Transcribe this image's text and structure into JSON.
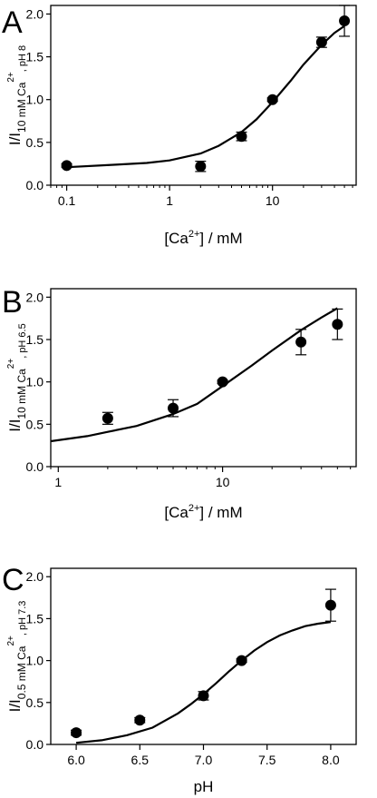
{
  "chart_data": [
    {
      "panel": "A",
      "type": "scatter",
      "xscale": "log",
      "xlim": [
        0.07,
        65
      ],
      "ylim": [
        0,
        2.1
      ],
      "xticks": [
        {
          "v": 0.1,
          "label": "0.1"
        },
        {
          "v": 1,
          "label": "1"
        },
        {
          "v": 10,
          "label": "10"
        }
      ],
      "yticks": [
        {
          "v": 0,
          "label": "0.0"
        },
        {
          "v": 0.5,
          "label": "0.5"
        },
        {
          "v": 1.0,
          "label": "1.0"
        },
        {
          "v": 1.5,
          "label": "1.5"
        },
        {
          "v": 2.0,
          "label": "2.0"
        }
      ],
      "xlabel": {
        "pre": "[Ca",
        "sup": "2+",
        "post": "] / mM"
      },
      "ylabel": {
        "main": "I/I",
        "sub": "10 mM Ca",
        "sup": "2+",
        "tail": ", pH 8"
      },
      "points": [
        {
          "x": 0.1,
          "y": 0.23,
          "err": 0.02
        },
        {
          "x": 2,
          "y": 0.22,
          "err": 0.06
        },
        {
          "x": 5,
          "y": 0.57,
          "err": 0.05
        },
        {
          "x": 10,
          "y": 1.0,
          "err": 0.02
        },
        {
          "x": 30,
          "y": 1.67,
          "err": 0.06
        },
        {
          "x": 50,
          "y": 1.92,
          "err": 0.18
        }
      ],
      "fit": {
        "x": [
          0.1,
          0.3,
          0.6,
          1,
          2,
          3,
          5,
          7,
          10,
          15,
          20,
          30,
          40,
          50
        ],
        "y": [
          0.21,
          0.24,
          0.26,
          0.29,
          0.37,
          0.46,
          0.62,
          0.77,
          0.97,
          1.22,
          1.41,
          1.64,
          1.78,
          1.86
        ]
      }
    },
    {
      "panel": "B",
      "type": "scatter",
      "xscale": "log",
      "xlim": [
        0.9,
        65
      ],
      "ylim": [
        0,
        2.1
      ],
      "xticks": [
        {
          "v": 1,
          "label": "1"
        },
        {
          "v": 10,
          "label": "10"
        }
      ],
      "yticks": [
        {
          "v": 0,
          "label": "0.0"
        },
        {
          "v": 0.5,
          "label": "0.5"
        },
        {
          "v": 1.0,
          "label": "1.0"
        },
        {
          "v": 1.5,
          "label": "1.5"
        },
        {
          "v": 2.0,
          "label": "2.0"
        }
      ],
      "xlabel": {
        "pre": "[Ca",
        "sup": "2+",
        "post": "] / mM"
      },
      "ylabel": {
        "main": "I/I",
        "sub": "10 mM Ca",
        "sup": "2+",
        "tail": ", pH 6.5"
      },
      "points": [
        {
          "x": 2,
          "y": 0.57,
          "err": 0.07
        },
        {
          "x": 5,
          "y": 0.69,
          "err": 0.1
        },
        {
          "x": 10,
          "y": 1.0,
          "err": 0.02
        },
        {
          "x": 30,
          "y": 1.47,
          "err": 0.15
        },
        {
          "x": 50,
          "y": 1.68,
          "err": 0.18
        }
      ],
      "fit": {
        "x": [
          0.9,
          1.5,
          2,
          3,
          5,
          7,
          10,
          15,
          20,
          30,
          40,
          50
        ],
        "y": [
          0.3,
          0.36,
          0.41,
          0.48,
          0.62,
          0.74,
          0.95,
          1.19,
          1.37,
          1.61,
          1.76,
          1.87
        ]
      }
    },
    {
      "panel": "C",
      "type": "scatter",
      "xscale": "linear",
      "xlim": [
        5.8,
        8.2
      ],
      "ylim": [
        0,
        2.1
      ],
      "xticks": [
        {
          "v": 6,
          "label": "6.0"
        },
        {
          "v": 6.5,
          "label": "6.5"
        },
        {
          "v": 7,
          "label": "7.0"
        },
        {
          "v": 7.5,
          "label": "7.5"
        },
        {
          "v": 8,
          "label": "8.0"
        }
      ],
      "yticks": [
        {
          "v": 0,
          "label": "0.0"
        },
        {
          "v": 0.5,
          "label": "0.5"
        },
        {
          "v": 1.0,
          "label": "1.0"
        },
        {
          "v": 1.5,
          "label": "1.5"
        },
        {
          "v": 2.0,
          "label": "2.0"
        }
      ],
      "xlabel": {
        "pre": "pH",
        "sup": "",
        "post": ""
      },
      "ylabel": {
        "main": "I/I",
        "sub": "0.5 mM Ca",
        "sup": "2+",
        "tail": ", pH 7.3"
      },
      "points": [
        {
          "x": 6.0,
          "y": 0.14,
          "err": 0.03
        },
        {
          "x": 6.5,
          "y": 0.29,
          "err": 0.03
        },
        {
          "x": 7.0,
          "y": 0.58,
          "err": 0.05
        },
        {
          "x": 7.3,
          "y": 1.0,
          "err": 0.02
        },
        {
          "x": 8.0,
          "y": 1.66,
          "err": 0.19
        }
      ],
      "fit": {
        "x": [
          6.0,
          6.2,
          6.4,
          6.6,
          6.8,
          6.9,
          7.0,
          7.1,
          7.2,
          7.3,
          7.4,
          7.5,
          7.6,
          7.7,
          7.8,
          7.9,
          8.0
        ],
        "y": [
          0.02,
          0.05,
          0.11,
          0.2,
          0.37,
          0.48,
          0.6,
          0.73,
          0.87,
          1.0,
          1.12,
          1.22,
          1.3,
          1.36,
          1.41,
          1.44,
          1.46
        ]
      }
    }
  ]
}
